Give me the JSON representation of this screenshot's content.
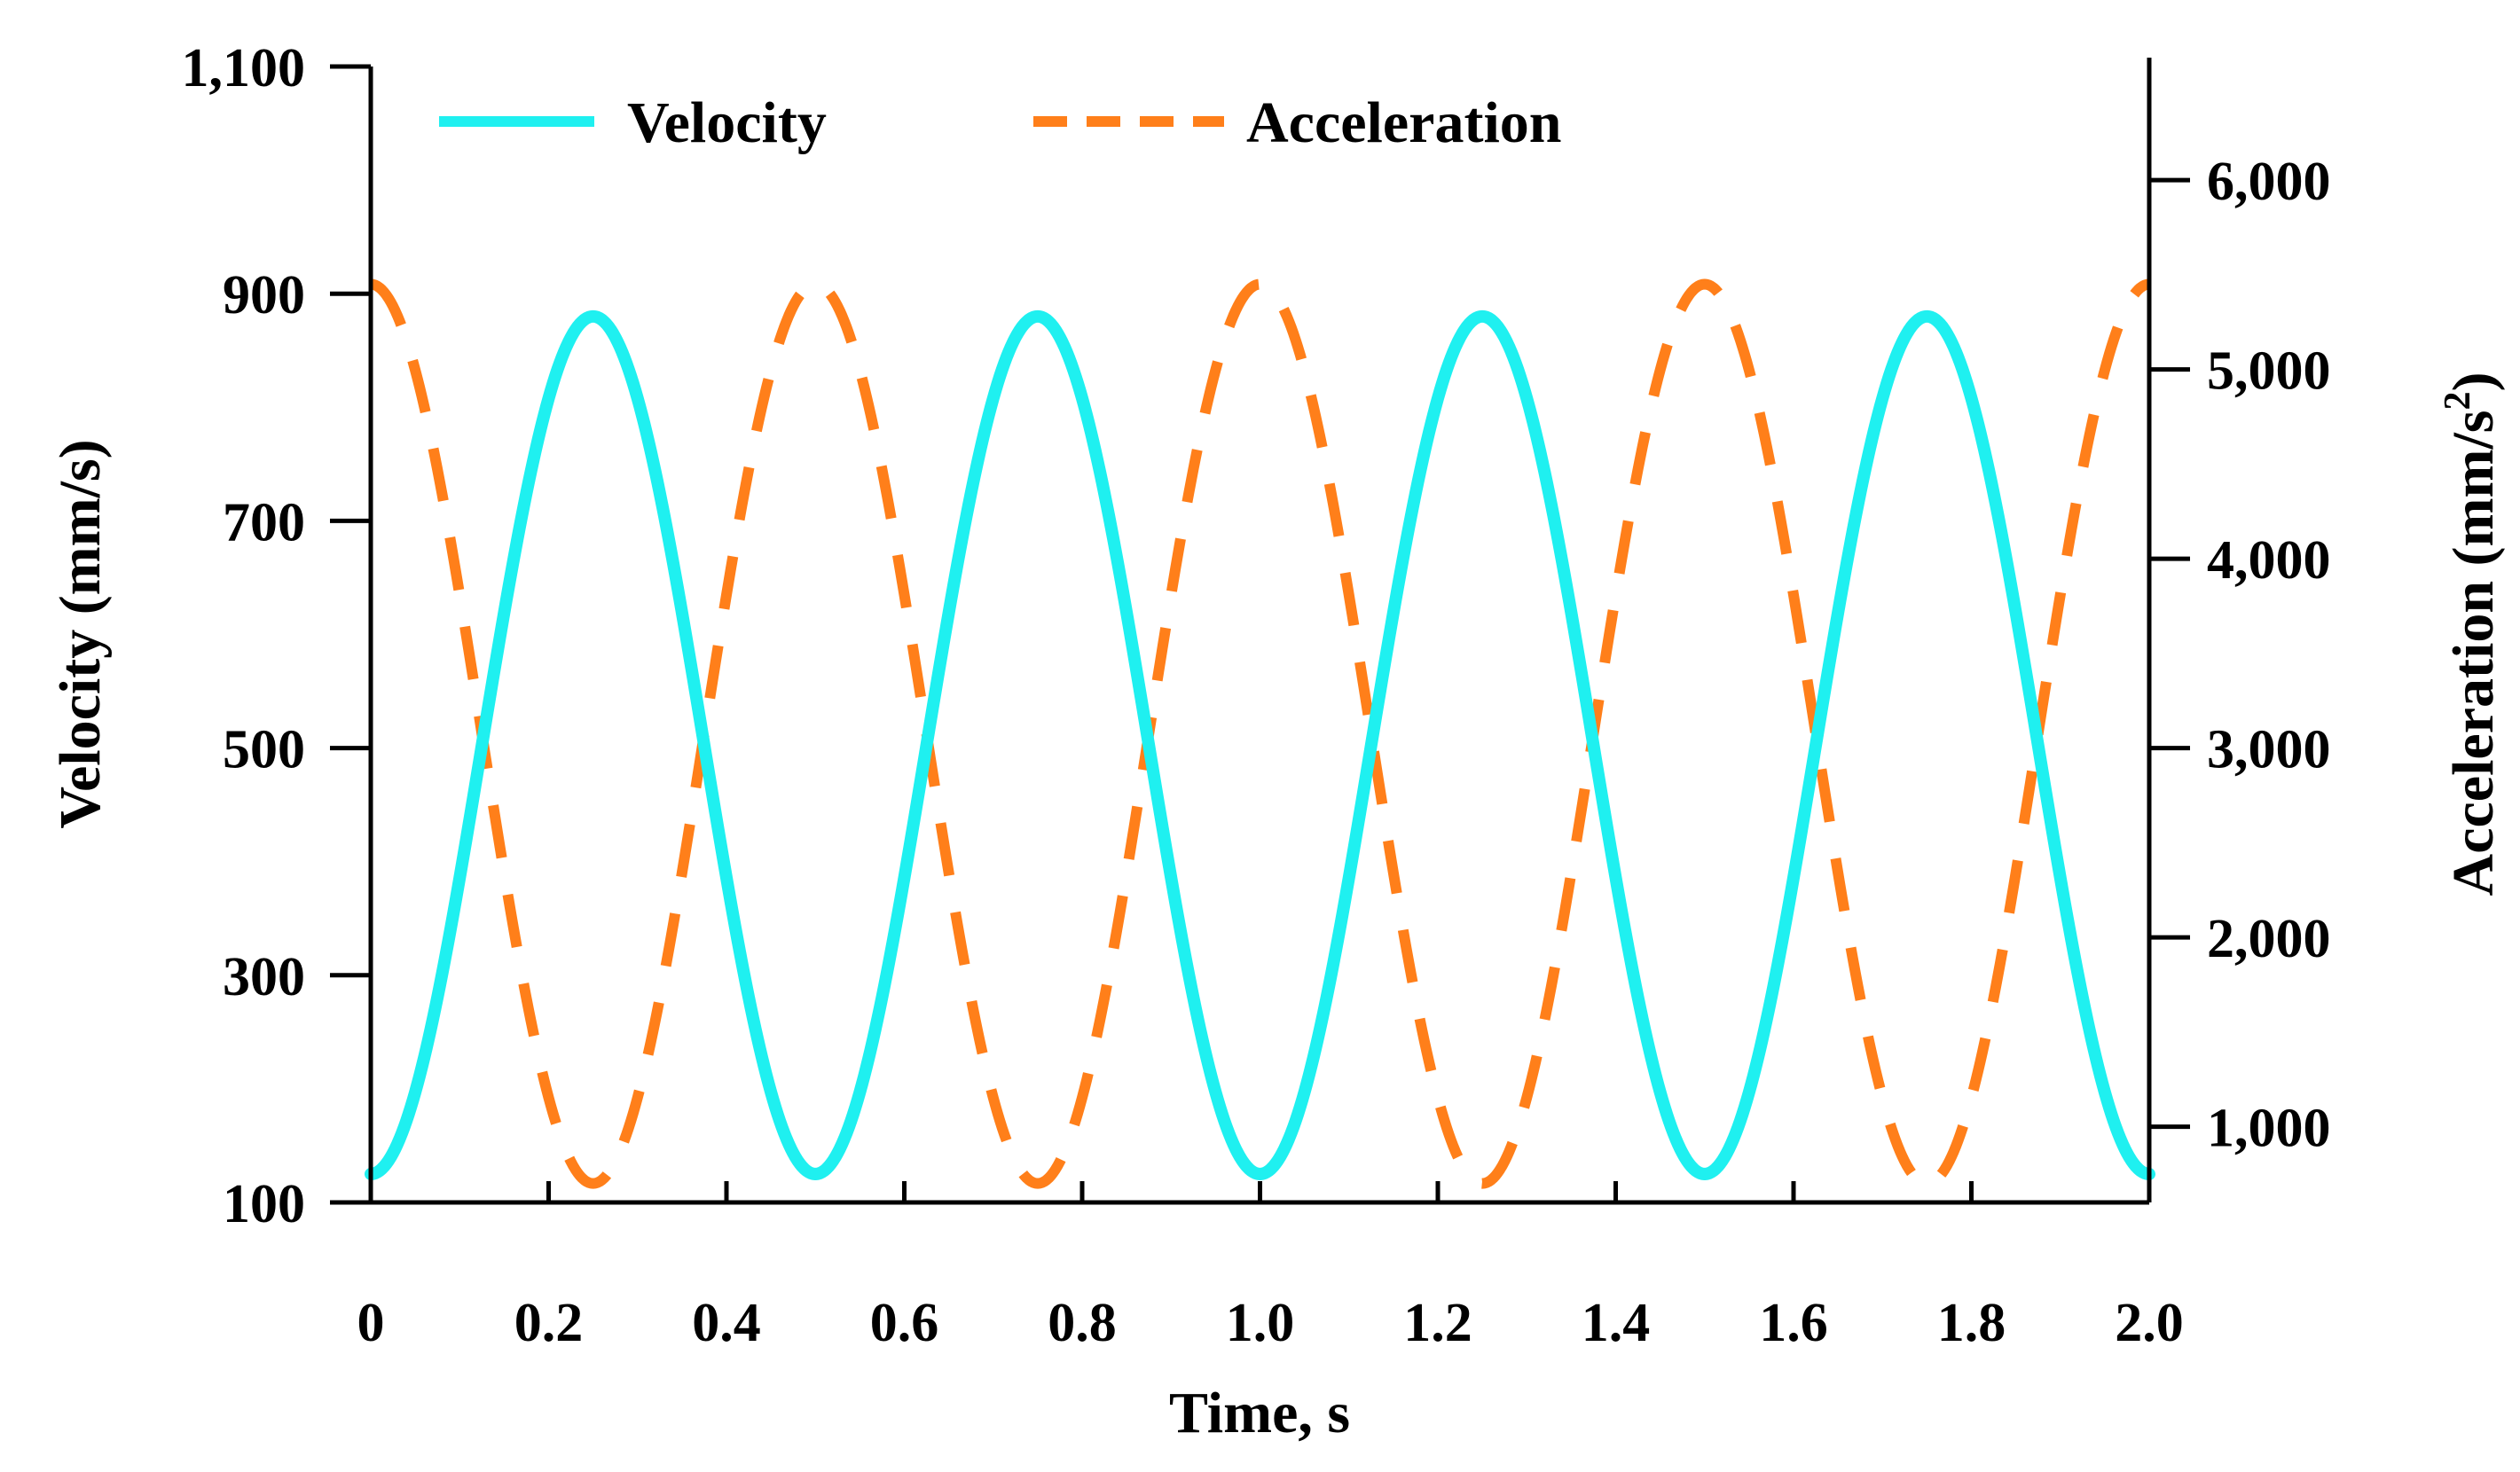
{
  "chart_data": {
    "type": "line",
    "x": {
      "label": "Time, s",
      "range": [
        0,
        2.0
      ],
      "ticks": [
        0,
        0.2,
        0.4,
        0.6,
        0.8,
        1.0,
        1.2,
        1.4,
        1.6,
        1.8,
        2.0
      ],
      "tick_labels": [
        "0",
        "0.2",
        "0.4",
        "0.6",
        "0.8",
        "1.0",
        "1.2",
        "1.4",
        "1.6",
        "1.8",
        "2.0"
      ]
    },
    "y_left": {
      "label": "Velocity (mm/s)",
      "range": [
        100,
        1100
      ],
      "ticks": [
        100,
        300,
        500,
        700,
        900,
        1100
      ],
      "tick_labels": [
        "100",
        "300",
        "500",
        "700",
        "900",
        "1,100"
      ]
    },
    "y_right": {
      "label_main": "Acceleration (mm/s",
      "label_sup": "2",
      "label_end": ")",
      "range": [
        600,
        6600
      ],
      "ticks": [
        1000,
        2000,
        3000,
        4000,
        5000,
        6000
      ],
      "tick_labels": [
        "1,000",
        "2,000",
        "3,000",
        "4,000",
        "5,000",
        "6,000"
      ]
    },
    "grid": false,
    "legend_position": "top",
    "series": [
      {
        "name": "Velocity",
        "axis": "left",
        "color": "#1FF0F0",
        "style": "solid",
        "period_s": 0.5,
        "min": 125,
        "max": 880,
        "starts_at": "min",
        "x": [
          0,
          0.0625,
          0.125,
          0.1875,
          0.25,
          0.3125,
          0.375,
          0.4375,
          0.5,
          0.5625,
          0.625,
          0.6875,
          0.75,
          0.8125,
          0.875,
          0.9375,
          1.0,
          1.0625,
          1.125,
          1.1875,
          1.25,
          1.3125,
          1.375,
          1.4375,
          1.5,
          1.5625,
          1.625,
          1.6875,
          1.75,
          1.8125,
          1.875,
          1.9375,
          2.0
        ],
        "values": [
          125,
          236,
          502,
          769,
          880,
          769,
          502,
          236,
          125,
          236,
          502,
          769,
          880,
          769,
          502,
          236,
          125,
          236,
          502,
          769,
          880,
          769,
          502,
          236,
          125,
          236,
          502,
          769,
          880,
          769,
          502,
          236,
          125
        ]
      },
      {
        "name": "Acceleration",
        "axis": "right",
        "color": "#FF7F1A",
        "style": "dashed",
        "period_s": 0.5,
        "min": 700,
        "max": 5450,
        "starts_at": "max",
        "x": [
          0,
          0.0625,
          0.125,
          0.1875,
          0.25,
          0.3125,
          0.375,
          0.4375,
          0.5,
          0.5625,
          0.625,
          0.6875,
          0.75,
          0.8125,
          0.875,
          0.9375,
          1.0,
          1.0625,
          1.125,
          1.1875,
          1.25,
          1.3125,
          1.375,
          1.4375,
          1.5,
          1.5625,
          1.625,
          1.6875,
          1.75,
          1.8125,
          1.875,
          1.9375,
          2.0
        ],
        "values": [
          5450,
          4754,
          3075,
          1396,
          700,
          1396,
          3075,
          4754,
          5450,
          4754,
          3075,
          1396,
          700,
          1396,
          3075,
          4754,
          5450,
          4754,
          3075,
          1396,
          700,
          1396,
          3075,
          4754,
          5450,
          4754,
          3075,
          1396,
          700,
          1396,
          3075,
          4754,
          5450
        ]
      }
    ]
  }
}
